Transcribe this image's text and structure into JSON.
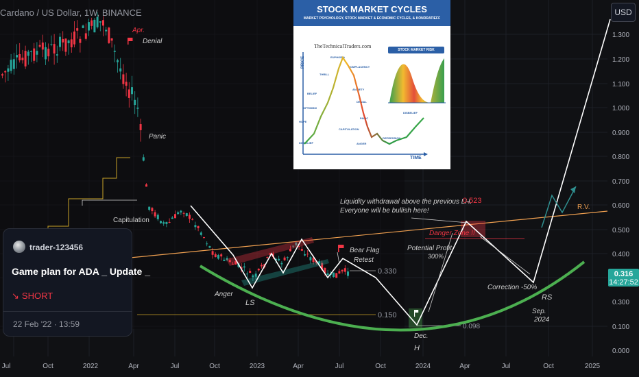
{
  "header": {
    "title": "Cardano / US Dollar, 1W, BINANCE",
    "currency_button": "USD"
  },
  "price_axis": {
    "labels": [
      "1.300",
      "1.200",
      "1.100",
      "1.000",
      "0.900",
      "0.800",
      "0.700",
      "0.600",
      "0.500",
      "0.400",
      "0.300",
      "0.100",
      "0.000"
    ],
    "current_price": "0.316",
    "countdown": "14:27:52",
    "tag_color": "#26a69a"
  },
  "time_axis": {
    "labels": [
      "Jul",
      "Oct",
      "2022",
      "Apr",
      "Jul",
      "Oct",
      "2023",
      "Apr",
      "Jul",
      "Oct",
      "2024",
      "Apr",
      "Jul",
      "Oct",
      "2025"
    ]
  },
  "annotations": {
    "apr": "Apr.",
    "denial": "Denial",
    "panic": "Panic",
    "capitulation": "Capitulation",
    "anger": "Anger",
    "ls": "LS",
    "bear_flag": "Bear Flag",
    "retest": "Retest",
    "level_330": "0.330",
    "level_150": "0.150",
    "level_098": "0.098",
    "level_523": "0.523",
    "liquidity_1": "Liquidity withdrawal above the previous LH.",
    "liquidity_2": "Everyone will be bullish here!",
    "danger_zone": "Danger Zone !!",
    "potential_profit": "Potential Profit",
    "potential_pct": "300%",
    "correction": "Correction -50%",
    "rs": "RS",
    "sep": "Sep.",
    "sep_year": "2024",
    "dec": "Dec.",
    "h": "H",
    "rv": "R.V."
  },
  "idea_card": {
    "user": "trader-123456",
    "title": "Game plan for ADA _ Update _",
    "direction": "SHORT",
    "date": "22 Feb '22 · 13:59"
  },
  "inset": {
    "title": "STOCK MARKET CYCLES",
    "subtitle": "MARKET PSYCHOLOGY, STOCK MARKET & ECONOMIC CYCLES, & KONDRATIEFF",
    "brand": "TheTechnicalTraders.com",
    "risk_title": "STOCK MARKET RISK",
    "axis_price": "PRICE",
    "axis_time": "TIME",
    "stages": [
      "EUPHORIA",
      "COMPLACENCY",
      "THRILL",
      "ANXIETY",
      "BELIEF",
      "DENIAL",
      "OPTIMISM",
      "PANIC",
      "HOPE",
      "CAPITULATION",
      "DISBELIEF",
      "ANGER",
      "DEPRESSION",
      "DISBELIEF"
    ]
  },
  "colors": {
    "bull": "#26a69a",
    "bear": "#f23645",
    "bowl": "#4caf50",
    "trend": "#f0a050",
    "path": "#ffffff"
  }
}
